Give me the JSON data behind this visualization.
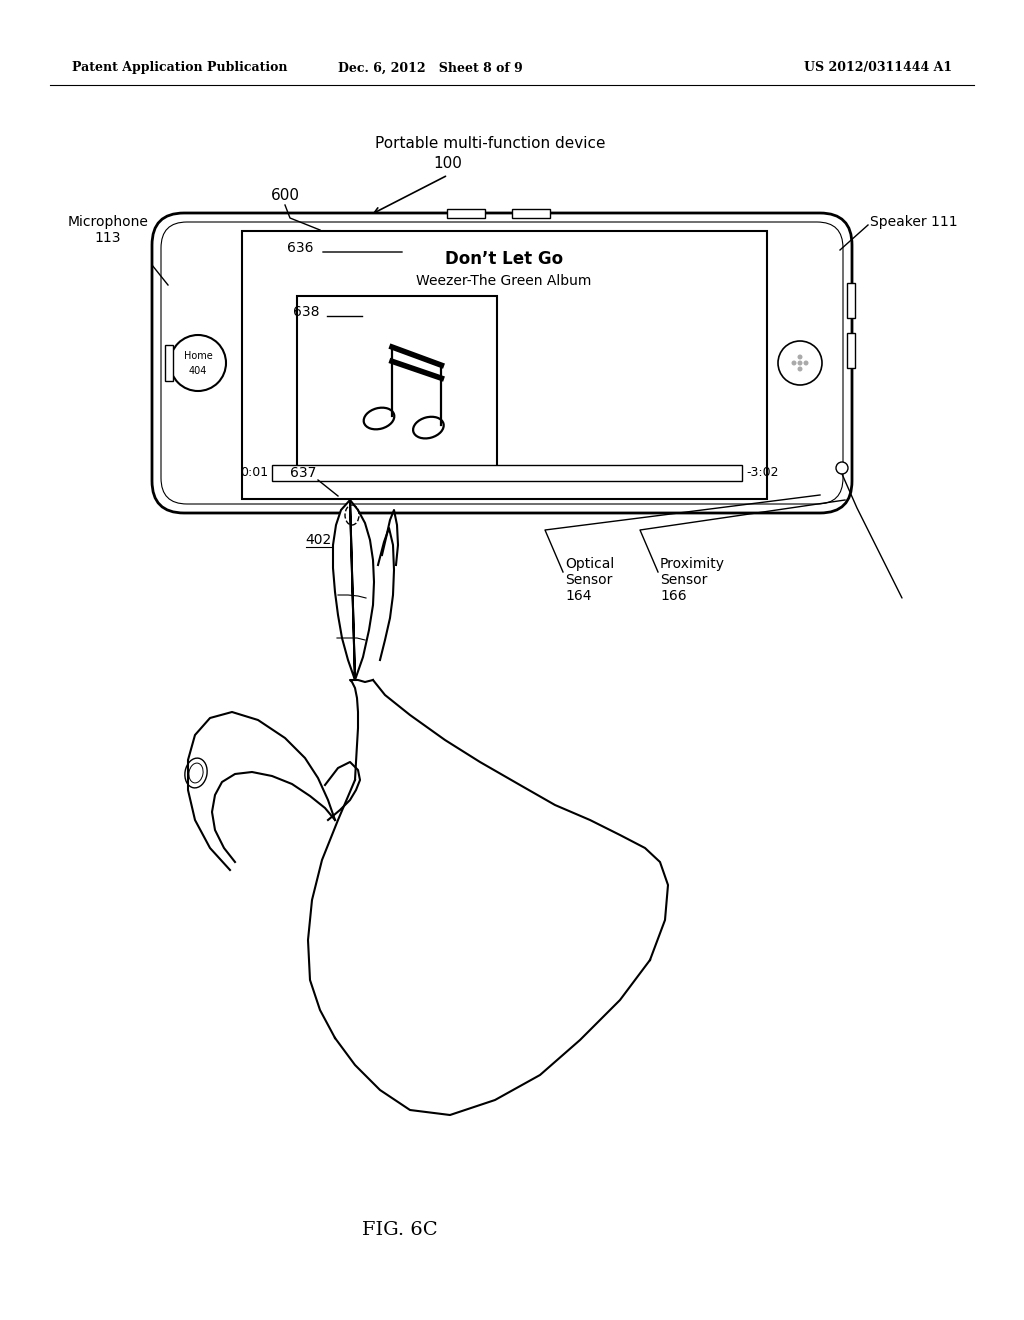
{
  "bg_color": "#ffffff",
  "line_color": "#000000",
  "header_left": "Patent Application Publication",
  "header_mid": "Dec. 6, 2012   Sheet 8 of 9",
  "header_right": "US 2012/0311444 A1",
  "figure_label": "FIG. 6C",
  "device_label": "Portable multi-function device",
  "device_num": "100",
  "screen_num": "600",
  "mic_label": "Microphone",
  "mic_num": "113",
  "speaker_label": "Speaker 111",
  "song_title": "Don’t Let Go",
  "song_subtitle": "Weezer-The Green Album",
  "label_636": "636",
  "label_638": "638",
  "label_637": "637",
  "time_start": "0:01",
  "time_end": "-3:02",
  "optical_label": "Optical\nSensor\n164",
  "proximity_label": "Proximity\nSensor\n166",
  "finger_label": "402"
}
